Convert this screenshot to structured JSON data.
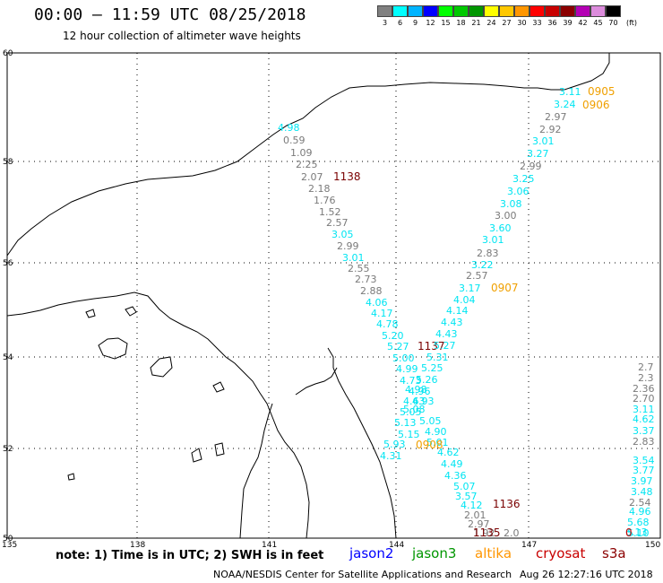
{
  "header": {
    "title": "00:00 – 11:59 UTC 08/25/2018",
    "subtitle": "12 hour collection of altimeter wave heights"
  },
  "legend": {
    "unit": "(ft)",
    "items": [
      {
        "label": "3",
        "color": "#808080"
      },
      {
        "label": "6",
        "color": "#00ffff"
      },
      {
        "label": "9",
        "color": "#00b4ff"
      },
      {
        "label": "12",
        "color": "#0000ff"
      },
      {
        "label": "15",
        "color": "#00ff00"
      },
      {
        "label": "18",
        "color": "#00c800"
      },
      {
        "label": "21",
        "color": "#009600"
      },
      {
        "label": "24",
        "color": "#ffff00"
      },
      {
        "label": "27",
        "color": "#ffc800"
      },
      {
        "label": "30",
        "color": "#ff9600"
      },
      {
        "label": "33",
        "color": "#ff0000"
      },
      {
        "label": "36",
        "color": "#c80000"
      },
      {
        "label": "39",
        "color": "#8b0000"
      },
      {
        "label": "42",
        "color": "#b400b4"
      },
      {
        "label": "45",
        "color": "#dc8cdc"
      },
      {
        "label": "70",
        "color": "#000000"
      }
    ]
  },
  "map": {
    "lat_labels": [
      "60",
      "58",
      "56",
      "54",
      "52",
      "50"
    ],
    "lon_labels": [
      "135",
      "138",
      "141",
      "144",
      "147",
      "150"
    ]
  },
  "colors": {
    "gray": "#7a7a7a",
    "cyan": "#00e5f2",
    "orange": "#f0a000",
    "darkred": "#7a0000",
    "red": "#cc0000"
  },
  "track_labels": [
    {
      "t": "4.98",
      "c": "cyan"
    },
    {
      "t": "0.59",
      "c": "gray"
    },
    {
      "t": "1.09",
      "c": "gray"
    },
    {
      "t": "2.25",
      "c": "gray"
    },
    {
      "t": "2.07",
      "c": "gray"
    },
    {
      "t": "2.18",
      "c": "gray"
    },
    {
      "t": "1.76",
      "c": "gray"
    },
    {
      "t": "1.52",
      "c": "gray"
    },
    {
      "t": "2.57",
      "c": "gray"
    },
    {
      "t": "3.05",
      "c": "cyan"
    },
    {
      "t": "2.99",
      "c": "gray"
    },
    {
      "t": "3.01",
      "c": "cyan"
    },
    {
      "t": "2.55",
      "c": "gray"
    },
    {
      "t": "2.73",
      "c": "gray"
    },
    {
      "t": "2.88",
      "c": "gray"
    },
    {
      "t": "4.06",
      "c": "cyan"
    },
    {
      "t": "4.17",
      "c": "cyan"
    },
    {
      "t": "4.78",
      "c": "cyan"
    },
    {
      "t": "5.20",
      "c": "cyan"
    },
    {
      "t": "5.27",
      "c": "cyan"
    },
    {
      "t": "5.00",
      "c": "cyan"
    },
    {
      "t": "4.99",
      "c": "cyan"
    },
    {
      "t": "4.73",
      "c": "cyan"
    },
    {
      "t": "4.98",
      "c": "cyan"
    },
    {
      "t": "4.63",
      "c": "cyan"
    },
    {
      "t": "5.05",
      "c": "cyan"
    },
    {
      "t": "5.13",
      "c": "cyan"
    },
    {
      "t": "5.15",
      "c": "cyan"
    },
    {
      "t": "5.93",
      "c": "cyan"
    },
    {
      "t": "4.31",
      "c": "cyan"
    },
    {
      "t": "1138",
      "c": "darkred"
    },
    {
      "t": "3.11",
      "c": "cyan"
    },
    {
      "t": "3.24",
      "c": "cyan"
    },
    {
      "t": "0905",
      "c": "orange"
    },
    {
      "t": "0906",
      "c": "orange"
    },
    {
      "t": "2.97",
      "c": "gray"
    },
    {
      "t": "2.92",
      "c": "gray"
    },
    {
      "t": "3.01",
      "c": "cyan"
    },
    {
      "t": "3.27",
      "c": "cyan"
    },
    {
      "t": "2.99",
      "c": "gray"
    },
    {
      "t": "3.25",
      "c": "cyan"
    },
    {
      "t": "3.06",
      "c": "cyan"
    },
    {
      "t": "3.08",
      "c": "cyan"
    },
    {
      "t": "3.00",
      "c": "gray"
    },
    {
      "t": "3.60",
      "c": "cyan"
    },
    {
      "t": "3.01",
      "c": "cyan"
    },
    {
      "t": "2.83",
      "c": "gray"
    },
    {
      "t": "3.22",
      "c": "cyan"
    },
    {
      "t": "2.57",
      "c": "gray"
    },
    {
      "t": "3.17",
      "c": "cyan"
    },
    {
      "t": "0907",
      "c": "orange"
    },
    {
      "t": "4.04",
      "c": "cyan"
    },
    {
      "t": "4.14",
      "c": "cyan"
    },
    {
      "t": "4.43",
      "c": "cyan"
    },
    {
      "t": "4.43",
      "c": "cyan"
    },
    {
      "t": "1137",
      "c": "darkred"
    },
    {
      "t": "5.27",
      "c": "cyan"
    },
    {
      "t": "5.31",
      "c": "cyan"
    },
    {
      "t": "5.25",
      "c": "cyan"
    },
    {
      "t": "5.26",
      "c": "cyan"
    },
    {
      "t": "4.96",
      "c": "cyan"
    },
    {
      "t": "4.93",
      "c": "cyan"
    },
    {
      "t": "5.08",
      "c": "cyan"
    },
    {
      "t": "5.05",
      "c": "cyan"
    },
    {
      "t": "4.90",
      "c": "cyan"
    },
    {
      "t": "5.01",
      "c": "cyan"
    },
    {
      "t": "0908",
      "c": "orange"
    },
    {
      "t": "4.62",
      "c": "cyan"
    },
    {
      "t": "4.49",
      "c": "cyan"
    },
    {
      "t": "4.36",
      "c": "cyan"
    },
    {
      "t": "5.07",
      "c": "cyan"
    },
    {
      "t": "3.57",
      "c": "cyan"
    },
    {
      "t": "4.12",
      "c": "cyan"
    },
    {
      "t": "1136",
      "c": "darkred"
    },
    {
      "t": "2.01",
      "c": "gray"
    },
    {
      "t": "2.97",
      "c": "gray"
    },
    {
      "t": "1.92",
      "c": "gray"
    },
    {
      "t": "1135",
      "c": "darkred"
    },
    {
      "t": "2.0",
      "c": "gray"
    },
    {
      "t": "2.7",
      "c": "gray"
    },
    {
      "t": "2.3",
      "c": "gray"
    },
    {
      "t": "2.36",
      "c": "gray"
    },
    {
      "t": "2.70",
      "c": "gray"
    },
    {
      "t": "3.11",
      "c": "cyan"
    },
    {
      "t": "4.62",
      "c": "cyan"
    },
    {
      "t": "3.37",
      "c": "cyan"
    },
    {
      "t": "2.83",
      "c": "gray"
    },
    {
      "t": "3.54",
      "c": "cyan"
    },
    {
      "t": "3.77",
      "c": "cyan"
    },
    {
      "t": "3.97",
      "c": "cyan"
    },
    {
      "t": "3.48",
      "c": "cyan"
    },
    {
      "t": "2.54",
      "c": "gray"
    },
    {
      "t": "4.96",
      "c": "cyan"
    },
    {
      "t": "5.68",
      "c": "cyan"
    },
    {
      "t": "6.13",
      "c": "cyan"
    },
    {
      "t": "5.10",
      "c": "cyan"
    },
    {
      "t": "0",
      "c": "red"
    }
  ],
  "footer": {
    "note": "note: 1) Time is in UTC; 2) SWH is in feet",
    "satellites": [
      {
        "name": "jason2",
        "color": "#0000ff"
      },
      {
        "name": "jason3",
        "color": "#009600"
      },
      {
        "name": "altika",
        "color": "#ff9600"
      },
      {
        "name": "cryosat",
        "color": "#c80000"
      },
      {
        "name": "s3a",
        "color": "#8b0000"
      }
    ],
    "credit": "NOAA/NESDIS Center for Satellite Applications and Research",
    "timestamp": "Aug 26 12:27:16 UTC 2018"
  }
}
